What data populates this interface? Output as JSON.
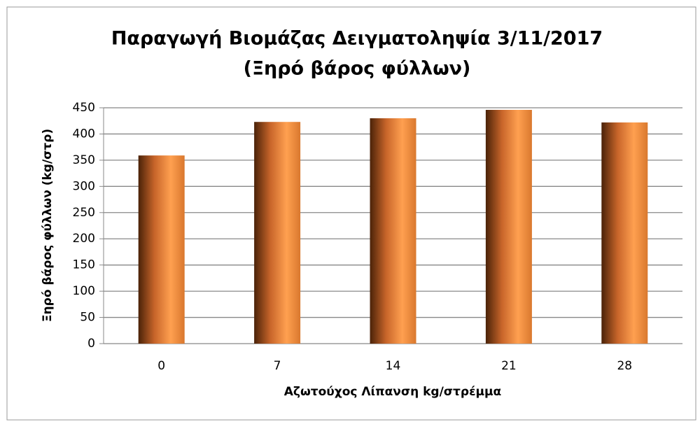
{
  "chart_data": {
    "type": "bar",
    "title": "Παραγωγή Βιομάζας Δειγματοληψία 3/11/2017",
    "subtitle": "(Ξηρό βάρος φύλλων)",
    "x_label": "Αζωτούχος Λίπανση kg/στρέμμα",
    "y_label": "Ξηρό βάρος φύλλων (kg/στρ)",
    "categories": [
      "0",
      "7",
      "14",
      "21",
      "28"
    ],
    "values": [
      359,
      423,
      430,
      446,
      422
    ],
    "color": "#f79646",
    "ylim": [
      0,
      450
    ],
    "yticks": [
      0,
      50,
      100,
      150,
      200,
      250,
      300,
      350,
      400,
      450
    ],
    "grid": true
  }
}
